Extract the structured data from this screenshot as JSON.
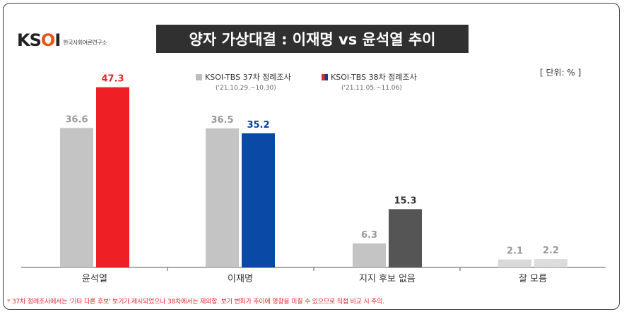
{
  "header": {
    "logo_text": "KSOI",
    "logo_subtitle": "한국사회여론연구소",
    "title": "양자 가상대결 : 이재명 vs 윤석열 추이",
    "unit": "[ 단위: % ]"
  },
  "legend": [
    {
      "label": "KSOI-TBS 37차 정례조사",
      "period": "('21.10.29.~10.30)"
    },
    {
      "label": "KSOI-TBS 38차 정례조사",
      "period": "('21.11.05.~11.06)"
    }
  ],
  "footnote": "* 37차 정례조사에서는 '기타 다른 후보' 보기가 제시되었으나 38차에서는 제외함. 보기 변화가 추이에 영향을 미칠 수 있으므로 직접 비교 시 주의.",
  "colors": {
    "grey_bar": "#c4c4c4",
    "red_bar": "#ee2026",
    "blue_bar": "#0a4aa6",
    "dark_bar": "#555555",
    "light_bar": "#d9d9d9",
    "red_label": "#e8262a",
    "blue_label": "#0a3f99",
    "grey_label": "#999999",
    "dark_label": "#333333"
  },
  "chart_data": {
    "type": "bar",
    "title": "양자 가상대결 : 이재명 vs 윤석열 추이",
    "categories": [
      "윤석열",
      "이재명",
      "지지 후보 없음",
      "잘 모름"
    ],
    "series": [
      {
        "name": "KSOI-TBS 37차 정례조사",
        "values": [
          36.6,
          36.5,
          6.3,
          2.1
        ]
      },
      {
        "name": "KSOI-TBS 38차 정례조사",
        "values": [
          47.3,
          35.2,
          15.3,
          2.2
        ]
      }
    ],
    "ylim": [
      0,
      50
    ],
    "grid": false,
    "legend_position": "top"
  }
}
